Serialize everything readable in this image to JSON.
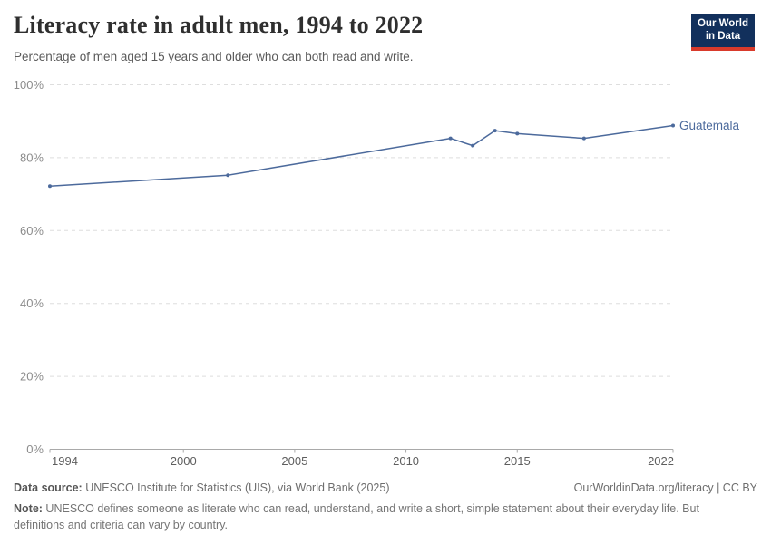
{
  "header": {
    "title": "Literacy rate in adult men, 1994 to 2022",
    "subtitle": "Percentage of men aged 15 years and older who can both read and write.",
    "logo": {
      "line1": "Our World",
      "line2": "in Data",
      "bg_color": "#12305c",
      "accent_color": "#d93a2b"
    }
  },
  "chart_data": {
    "type": "line",
    "title": "Literacy rate in adult men, 1994 to 2022",
    "xlabel": "",
    "ylabel": "",
    "xlim": [
      1994,
      2022
    ],
    "ylim": [
      0,
      100
    ],
    "x_ticks": [
      1994,
      2000,
      2005,
      2010,
      2015,
      2022
    ],
    "y_ticks": [
      0,
      20,
      40,
      60,
      80,
      100
    ],
    "y_tick_format": "{}%",
    "grid": "horizontal-dashed",
    "legend_position": "end-of-line",
    "series": [
      {
        "name": "Guatemala",
        "color": "#4c6a9c",
        "points": [
          [
            1994,
            72.2
          ],
          [
            2002,
            75.2
          ],
          [
            2012,
            85.3
          ],
          [
            2013,
            83.3
          ],
          [
            2014,
            87.4
          ],
          [
            2015,
            86.6
          ],
          [
            2018,
            85.3
          ],
          [
            2022,
            88.8
          ]
        ]
      }
    ]
  },
  "footer": {
    "datasource_label": "Data source:",
    "datasource_text": " UNESCO Institute for Statistics (UIS), via World Bank (2025)",
    "attribution": "OurWorldinData.org/literacy | CC BY",
    "note_label": "Note:",
    "note_text": " UNESCO defines someone as literate who can read, understand, and write a short, simple statement about their everyday life. But definitions and criteria can vary by country."
  }
}
